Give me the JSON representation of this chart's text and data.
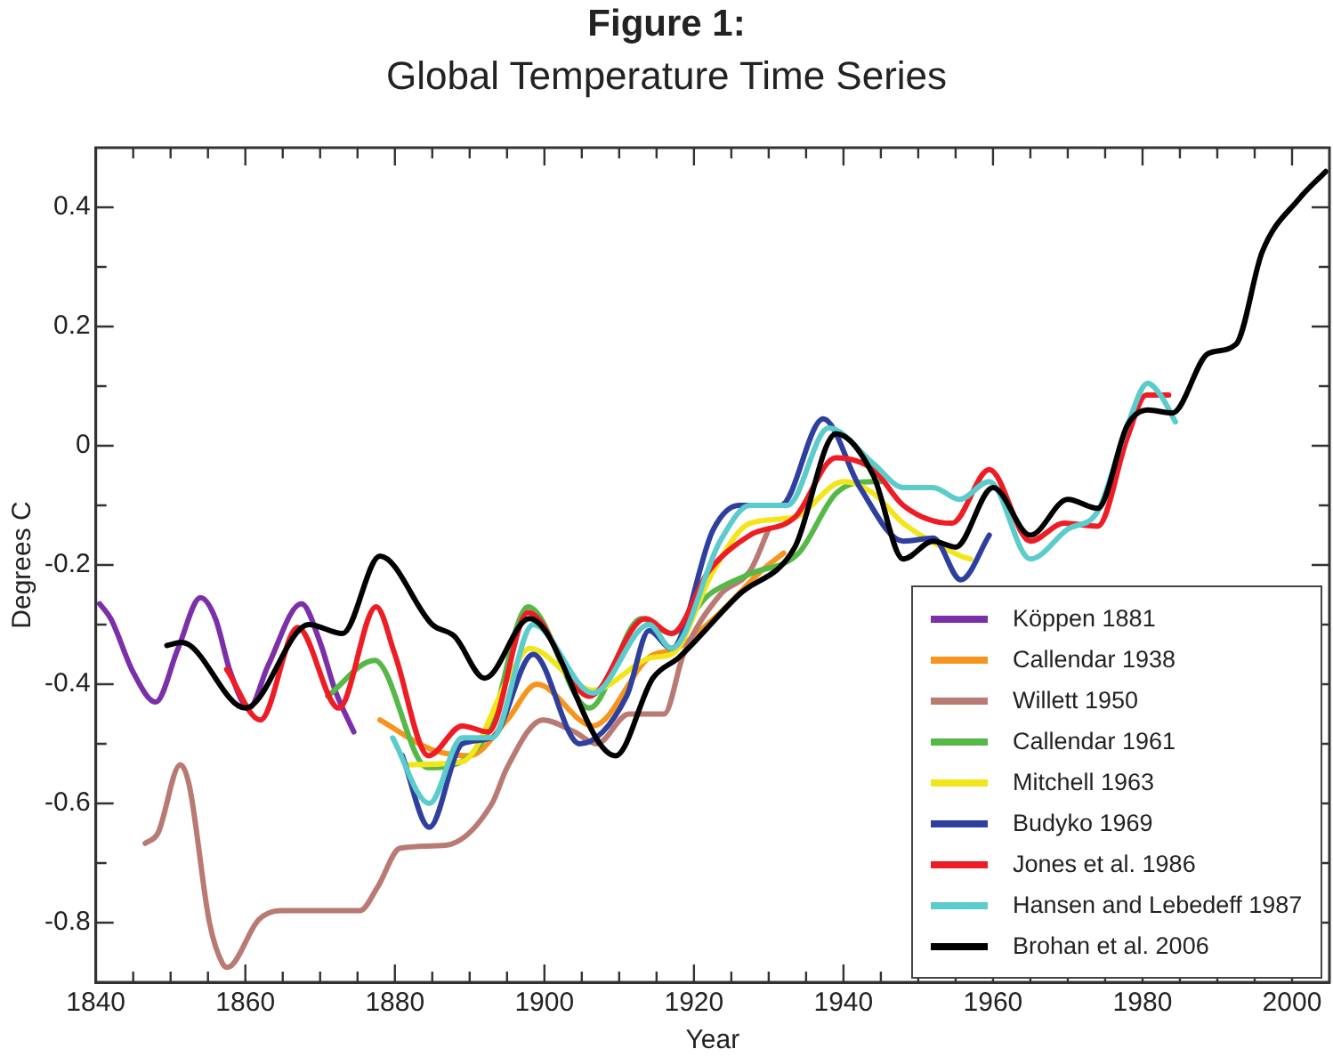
{
  "chart_data": {
    "type": "line",
    "title": "Figure 1:",
    "subtitle": "Global Temperature Time Series",
    "xlabel": "Year",
    "ylabel": "Degrees C",
    "xlim": [
      1840,
      2005
    ],
    "ylim": [
      -0.9,
      0.5
    ],
    "xticks": [
      1840,
      {
        "value": 1845,
        "label": null
      },
      {
        "value": 1850,
        "label": null
      },
      {
        "value": 1855,
        "label": null
      },
      1860,
      {
        "value": 1865,
        "label": null
      },
      {
        "value": 1870,
        "label": null
      },
      {
        "value": 1875,
        "label": null
      },
      1880,
      {
        "value": 1885,
        "label": null
      },
      {
        "value": 1890,
        "label": null
      },
      {
        "value": 1895,
        "label": null
      },
      1900,
      {
        "value": 1905,
        "label": null
      },
      {
        "value": 1910,
        "label": null
      },
      {
        "value": 1915,
        "label": null
      },
      1920,
      {
        "value": 1925,
        "label": null
      },
      {
        "value": 1930,
        "label": null
      },
      {
        "value": 1935,
        "label": null
      },
      1940,
      {
        "value": 1945,
        "label": null
      },
      {
        "value": 1950,
        "label": null
      },
      {
        "value": 1955,
        "label": null
      },
      1960,
      {
        "value": 1965,
        "label": null
      },
      {
        "value": 1970,
        "label": null
      },
      {
        "value": 1975,
        "label": null
      },
      1980,
      {
        "value": 1985,
        "label": null
      },
      {
        "value": 1990,
        "label": null
      },
      {
        "value": 1995,
        "label": null
      },
      2000
    ],
    "yticks": [
      -0.8,
      {
        "value": -0.7,
        "label": null
      },
      -0.6,
      {
        "value": -0.5,
        "label": null
      },
      -0.4,
      {
        "value": -0.3,
        "label": null
      },
      -0.2,
      {
        "value": -0.1,
        "label": null
      },
      0,
      {
        "value": 0.1,
        "label": null
      },
      0.2,
      {
        "value": 0.3,
        "label": null
      },
      0.4
    ],
    "grid": false,
    "legend": "bottom right",
    "marker": "none",
    "line_style": "solid",
    "series": [
      {
        "name": "Köppen 1881",
        "color": "#7b2fa8",
        "x": [
          1840.5,
          1842,
          1845,
          1848,
          1851,
          1854,
          1856,
          1858,
          1860.5,
          1863,
          1867.5,
          1870,
          1872,
          1874.5
        ],
        "values": [
          -0.265,
          -0.29,
          -0.38,
          -0.43,
          -0.34,
          -0.255,
          -0.29,
          -0.38,
          -0.44,
          -0.37,
          -0.265,
          -0.33,
          -0.41,
          -0.48
        ]
      },
      {
        "name": "Callendar 1938",
        "color": "#f7941d",
        "x": [
          1878,
          1885,
          1890,
          1895,
          1899,
          1906.5,
          1914,
          1917.7,
          1923.5,
          1929,
          1932
        ],
        "values": [
          -0.46,
          -0.51,
          -0.52,
          -0.46,
          -0.4,
          -0.47,
          -0.355,
          -0.34,
          -0.28,
          -0.21,
          -0.18
        ]
      },
      {
        "name": "Willett 1950",
        "color": "#b97a74",
        "x": [
          1846.6,
          1848.3,
          1851.3,
          1852.5,
          1855.2,
          1857,
          1857.6,
          1861.8,
          1864.7,
          1875.3,
          1877.7,
          1880.7,
          1886.8,
          1893,
          1895,
          1899.8,
          1904,
          1907,
          1911.3,
          1916,
          1918.6,
          1923.5,
          1927.5,
          1930
        ],
        "values": [
          -0.667,
          -0.65,
          -0.535,
          -0.57,
          -0.8,
          -0.87,
          -0.875,
          -0.795,
          -0.78,
          -0.78,
          -0.74,
          -0.675,
          -0.67,
          -0.6,
          -0.54,
          -0.46,
          -0.48,
          -0.5,
          -0.45,
          -0.45,
          -0.35,
          -0.25,
          -0.21,
          -0.14
        ]
      },
      {
        "name": "Callendar 1961",
        "color": "#55b847",
        "x": [
          1871,
          1877.3,
          1884.4,
          1892.5,
          1897.8,
          1906,
          1913,
          1917,
          1922,
          1927.5,
          1934,
          1939,
          1944,
          1945
        ],
        "values": [
          -0.42,
          -0.36,
          -0.54,
          -0.48,
          -0.27,
          -0.44,
          -0.29,
          -0.315,
          -0.25,
          -0.215,
          -0.18,
          -0.08,
          -0.06,
          -0.06
        ]
      },
      {
        "name": "Mitchell 1963",
        "color": "#f2e61a",
        "x": [
          1882,
          1889,
          1895.6,
          1898,
          1906.5,
          1914.5,
          1917,
          1922.6,
          1927.5,
          1933.4,
          1940,
          1944,
          1948,
          1955.7,
          1957
        ],
        "values": [
          -0.535,
          -0.53,
          -0.38,
          -0.34,
          -0.41,
          -0.355,
          -0.35,
          -0.21,
          -0.13,
          -0.12,
          -0.06,
          -0.08,
          -0.13,
          -0.185,
          -0.19
        ]
      },
      {
        "name": "Budyko 1969",
        "color": "#2e3f9e",
        "x": [
          1881,
          1884.6,
          1889,
          1893,
          1898.5,
          1904.7,
          1911,
          1914,
          1917,
          1922.6,
          1926,
          1931.6,
          1937.3,
          1942.2,
          1948,
          1952,
          1955.7,
          1959.5
        ],
        "values": [
          -0.52,
          -0.64,
          -0.5,
          -0.49,
          -0.35,
          -0.5,
          -0.42,
          -0.31,
          -0.34,
          -0.14,
          -0.1,
          -0.1,
          0.045,
          -0.07,
          -0.16,
          -0.155,
          -0.225,
          -0.15
        ]
      },
      {
        "name": "Jones et al. 1986",
        "color": "#ee1c25",
        "x": [
          1857.5,
          1862,
          1867,
          1872.5,
          1877.5,
          1880,
          1884.5,
          1889,
          1892.5,
          1897.8,
          1906,
          1913.5,
          1917,
          1922,
          1927.5,
          1933.5,
          1939,
          1944,
          1948,
          1954.5,
          1959.5,
          1965,
          1969.5,
          1974,
          1978,
          1980.5,
          1983.5
        ],
        "values": [
          -0.375,
          -0.46,
          -0.305,
          -0.44,
          -0.27,
          -0.35,
          -0.52,
          -0.47,
          -0.48,
          -0.28,
          -0.42,
          -0.29,
          -0.315,
          -0.21,
          -0.15,
          -0.12,
          -0.02,
          -0.04,
          -0.1,
          -0.13,
          -0.04,
          -0.16,
          -0.13,
          -0.135,
          0.015,
          0.085,
          0.085
        ]
      },
      {
        "name": "Hansen and Lebedeff 1987",
        "color": "#5ccbcb",
        "x": [
          1879.7,
          1884.6,
          1889,
          1893,
          1898.5,
          1906.5,
          1914,
          1917,
          1923.5,
          1927.5,
          1932.5,
          1938,
          1944,
          1948,
          1952,
          1955.5,
          1959.5,
          1965,
          1970,
          1974,
          1978,
          1980.7,
          1982.4,
          1984.4
        ],
        "values": [
          -0.49,
          -0.6,
          -0.49,
          -0.49,
          -0.3,
          -0.415,
          -0.3,
          -0.34,
          -0.16,
          -0.1,
          -0.1,
          0.03,
          -0.03,
          -0.07,
          -0.07,
          -0.09,
          -0.06,
          -0.19,
          -0.14,
          -0.11,
          0.035,
          0.105,
          0.085,
          0.04
        ]
      },
      {
        "name": "Brohan et al. 2006",
        "color": "#000000",
        "x": [
          1849.5,
          1851.5,
          1860,
          1868.5,
          1873,
          1878,
          1885,
          1888,
          1892,
          1898,
          1909.5,
          1914.5,
          1918,
          1926,
          1933.5,
          1939,
          1944,
          1948,
          1952,
          1955,
          1960,
          1965,
          1970,
          1974,
          1978,
          1980.7,
          1984,
          1988.8,
          1992.5,
          1996,
          2001,
          2004.5
        ],
        "values": [
          -0.335,
          -0.33,
          -0.44,
          -0.3,
          -0.315,
          -0.185,
          -0.3,
          -0.32,
          -0.39,
          -0.29,
          -0.52,
          -0.39,
          -0.355,
          -0.25,
          -0.17,
          0.02,
          -0.05,
          -0.19,
          -0.16,
          -0.17,
          -0.07,
          -0.15,
          -0.09,
          -0.105,
          0.035,
          0.06,
          0.055,
          0.155,
          0.17,
          0.325,
          0.415,
          0.46
        ]
      }
    ]
  }
}
